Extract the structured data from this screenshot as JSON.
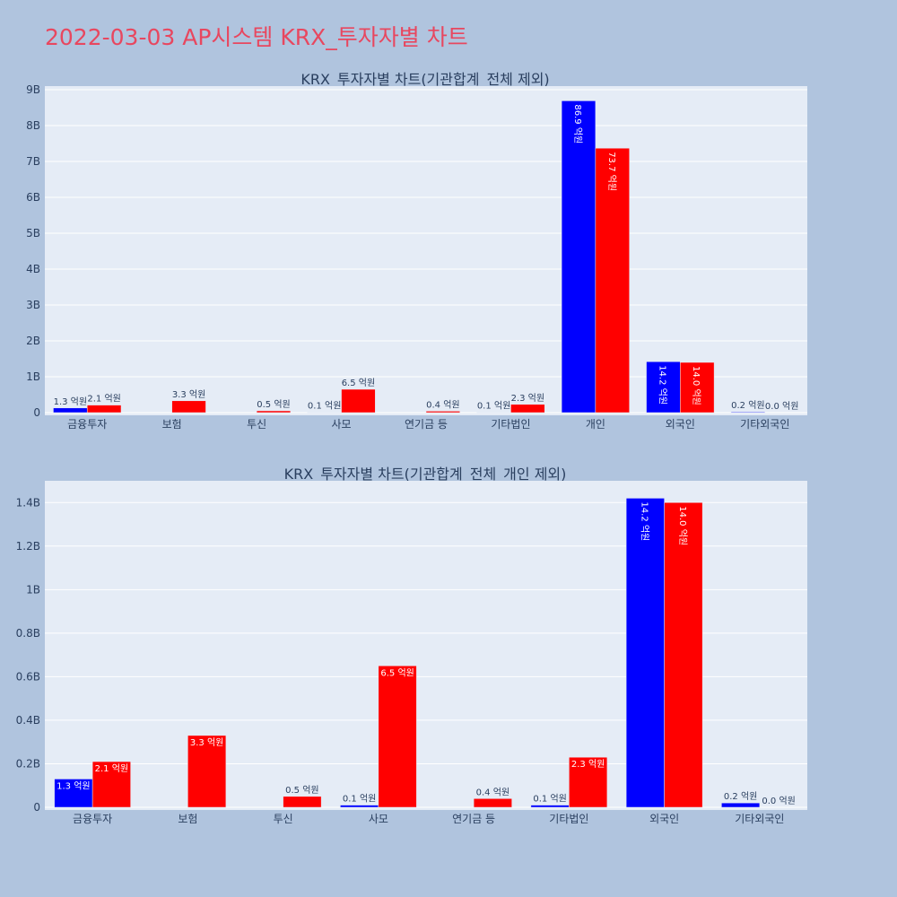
{
  "page": {
    "title": "2022-03-03 AP시스템 KRX_투자자별 차트"
  },
  "colors": {
    "background": "#b0c4de",
    "plot_bg": "#e5ecf6",
    "title": "#e8475f",
    "blue": "#0000ff",
    "red": "#ff0000",
    "text": "#2a3f5f"
  },
  "chart_data": [
    {
      "type": "bar",
      "title": "KRX_투자자별 차트(기관합계_전체 제외)",
      "cats": [
        "금융투자",
        "보험",
        "투신",
        "사모",
        "연기금 등",
        "기타법인",
        "개인",
        "외국인",
        "기타외국인"
      ],
      "blue": [
        [
          130000000,
          "1.3 억원"
        ],
        [
          0,
          ""
        ],
        [
          0,
          ""
        ],
        [
          10000000,
          "0.1 억원"
        ],
        [
          0,
          ""
        ],
        [
          10000000,
          "0.1 억원"
        ],
        [
          8690000000,
          "86.9 억원"
        ],
        [
          1420000000,
          "14.2 억원"
        ],
        [
          20000000,
          "0.2 억원"
        ]
      ],
      "red": [
        [
          210000000,
          "2.1 억원"
        ],
        [
          330000000,
          "3.3 억원"
        ],
        [
          50000000,
          "0.5 억원"
        ],
        [
          650000000,
          "6.5 억원"
        ],
        [
          40000000,
          "0.4 억원"
        ],
        [
          230000000,
          "2.3 억원"
        ],
        [
          7370000000,
          "73.7 억원"
        ],
        [
          1400000000,
          "14.0 억원"
        ],
        [
          0,
          "0.0 억원"
        ]
      ],
      "ylim": [
        0,
        9100000000
      ],
      "yticks": [
        [
          0,
          "0"
        ],
        [
          1000000000,
          "1B"
        ],
        [
          2000000000,
          "2B"
        ],
        [
          3000000000,
          "3B"
        ],
        [
          4000000000,
          "4B"
        ],
        [
          5000000000,
          "5B"
        ],
        [
          6000000000,
          "6B"
        ],
        [
          7000000000,
          "7B"
        ],
        [
          8000000000,
          "8B"
        ],
        [
          9000000000,
          "9B"
        ]
      ],
      "grid": true
    },
    {
      "type": "bar",
      "title": "KRX_투자자별 차트(기관합계_전체_개인 제외)",
      "cats": [
        "금융투자",
        "보험",
        "투신",
        "사모",
        "연기금 등",
        "기타법인",
        "외국인",
        "기타외국인"
      ],
      "blue": [
        [
          130000000,
          "1.3 억원"
        ],
        [
          0,
          ""
        ],
        [
          0,
          ""
        ],
        [
          10000000,
          "0.1 억원"
        ],
        [
          0,
          ""
        ],
        [
          10000000,
          "0.1 억원"
        ],
        [
          1420000000,
          "14.2 억원"
        ],
        [
          20000000,
          "0.2 억원"
        ]
      ],
      "red": [
        [
          210000000,
          "2.1 억원"
        ],
        [
          330000000,
          "3.3 억원"
        ],
        [
          50000000,
          "0.5 억원"
        ],
        [
          650000000,
          "6.5 억원"
        ],
        [
          40000000,
          "0.4 억원"
        ],
        [
          230000000,
          "2.3 억원"
        ],
        [
          1400000000,
          "14.0 억원"
        ],
        [
          0,
          "0.0 억원"
        ]
      ],
      "ylim": [
        0,
        1500000000
      ],
      "yticks": [
        [
          0,
          "0"
        ],
        [
          200000000,
          "0.2B"
        ],
        [
          400000000,
          "0.4B"
        ],
        [
          600000000,
          "0.6B"
        ],
        [
          800000000,
          "0.8B"
        ],
        [
          1000000000,
          "1B"
        ],
        [
          1200000000,
          "1.2B"
        ],
        [
          1400000000,
          "1.4B"
        ]
      ],
      "grid": true
    }
  ]
}
